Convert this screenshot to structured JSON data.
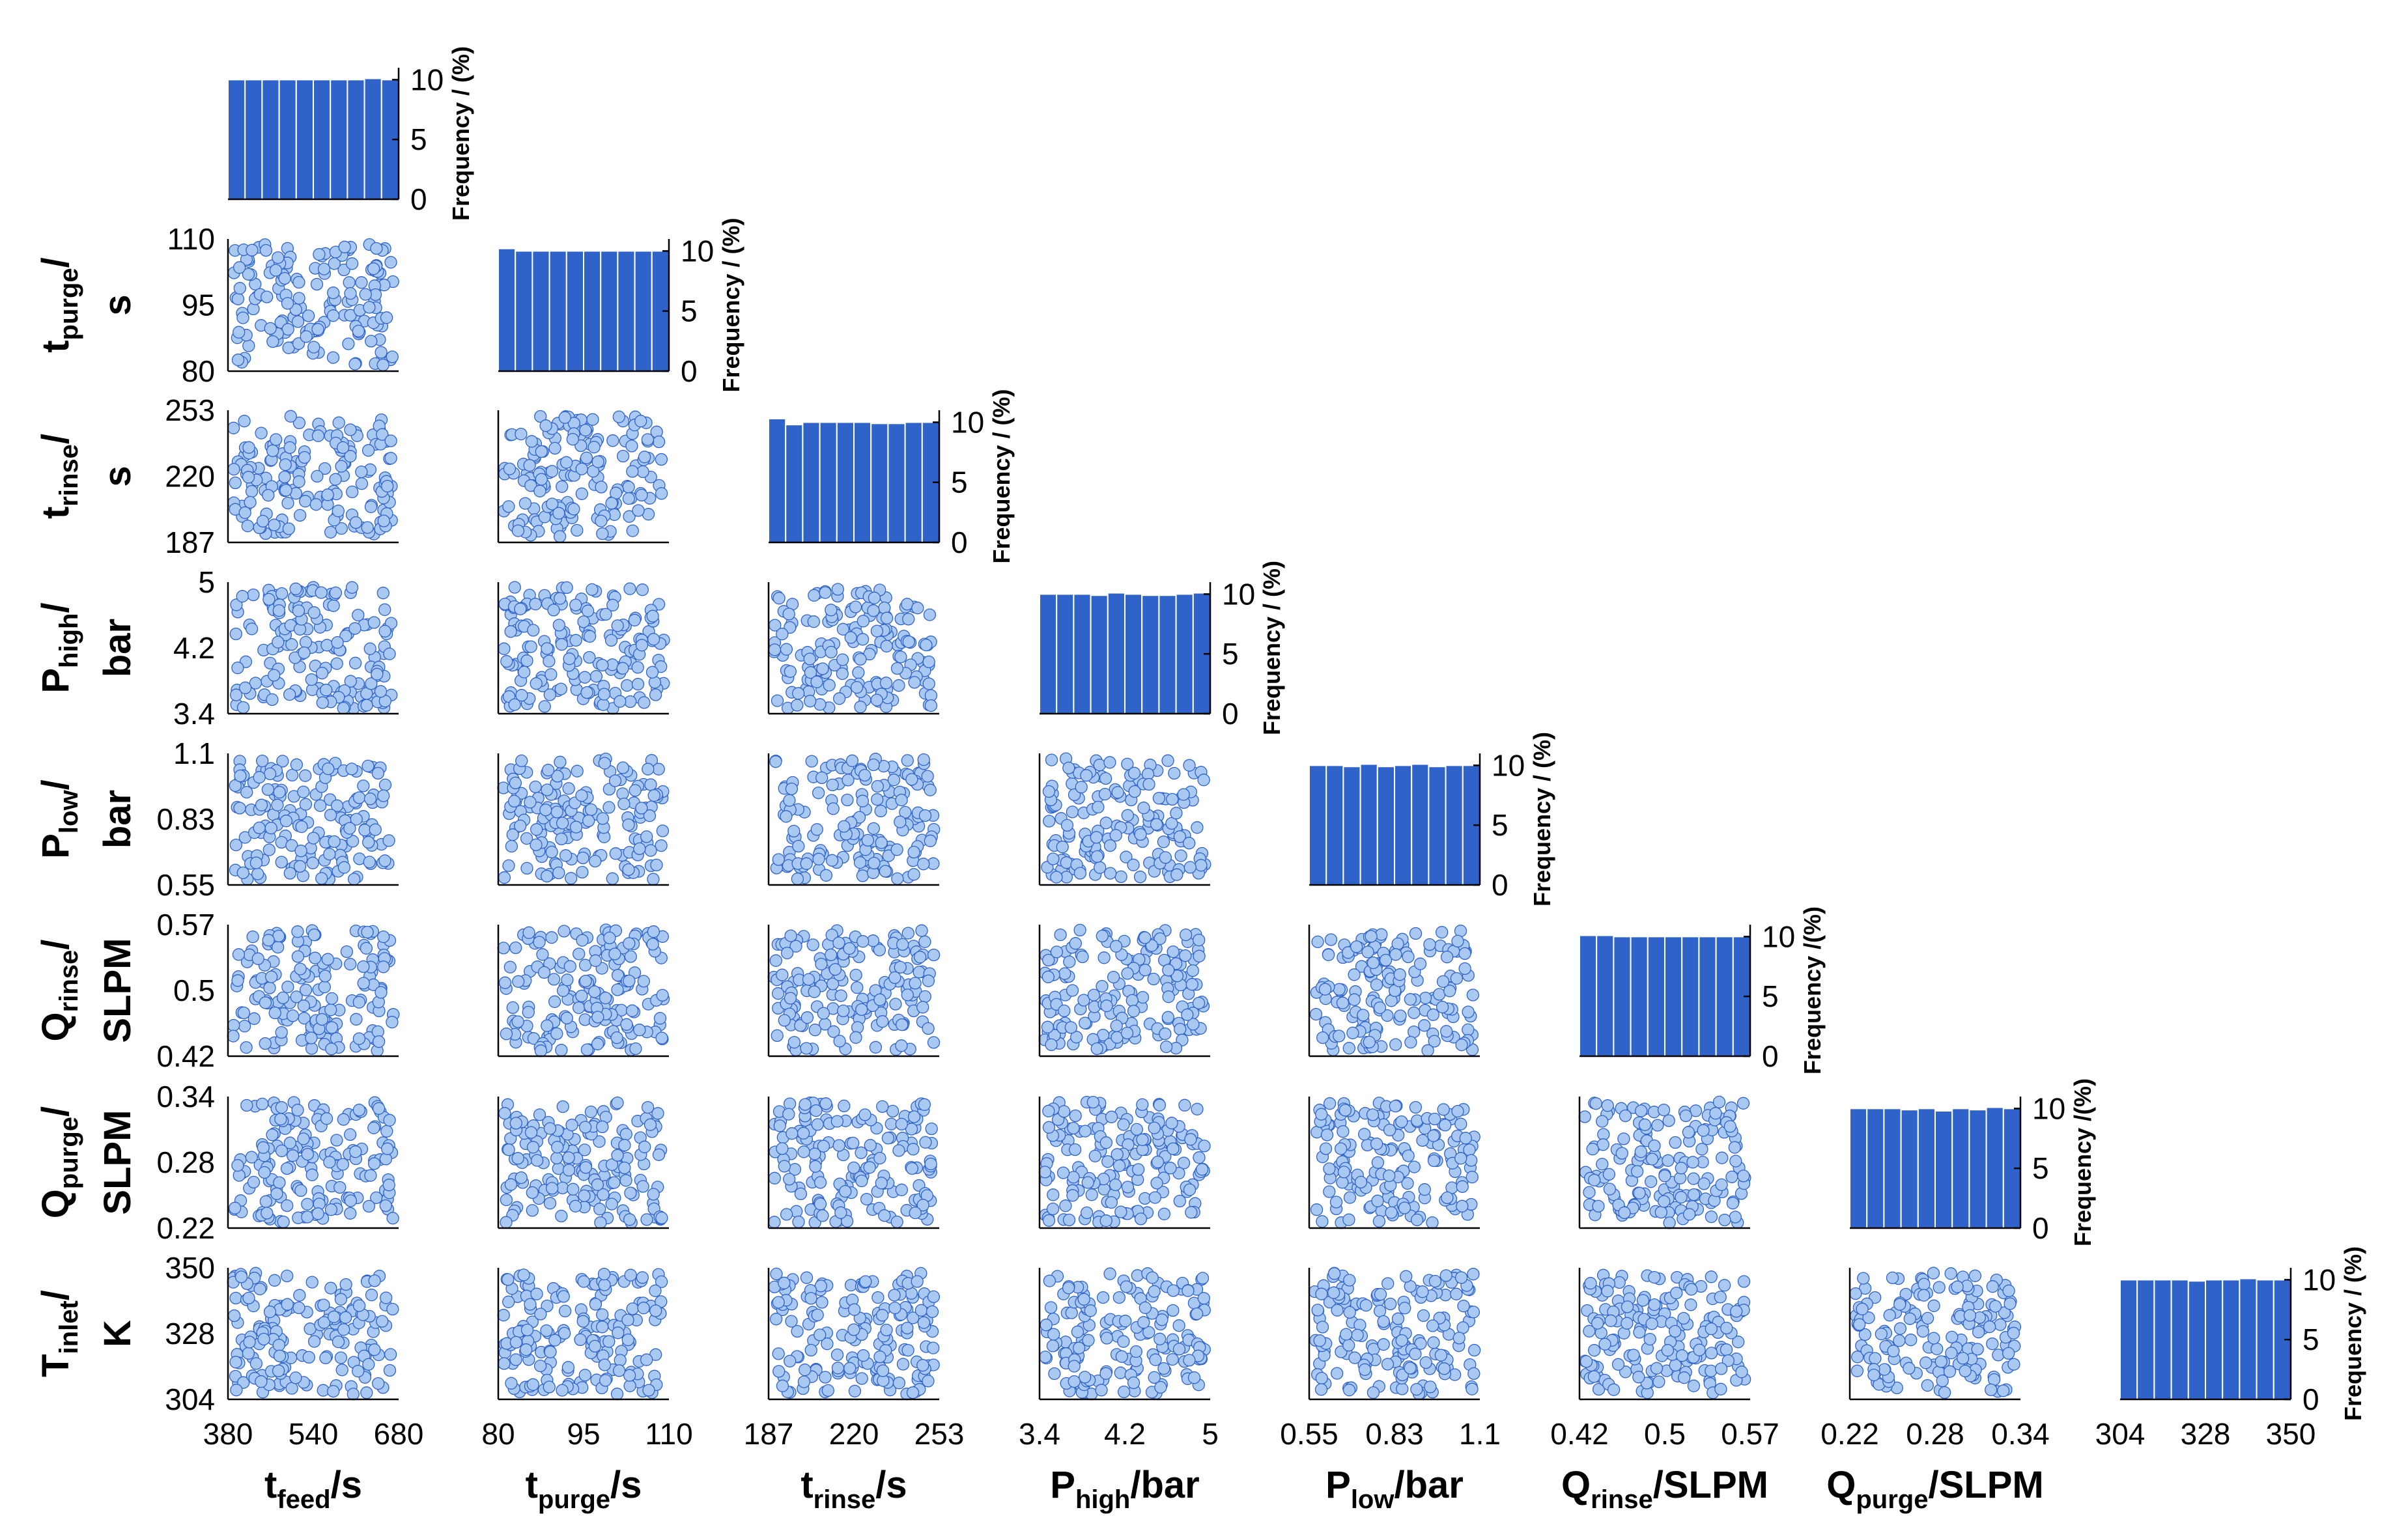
{
  "chart_data": {
    "type": "scatter-matrix",
    "title": "",
    "diagonal_type": "histogram",
    "off_diagonal_type": "scatter",
    "marker_color": "#2f63c9",
    "marker_fill": "#a9c8f2",
    "bar_color": "#2f63c9",
    "frequency_label": "Frequency / (%)",
    "frequency_label_alt": "Frequency /(%)",
    "frequency_ticks": [
      "0",
      "5",
      "10"
    ],
    "frequency_ylim": [
      0,
      11
    ],
    "variables": [
      {
        "name": "t_feed",
        "base": "t",
        "sub": "feed",
        "unit": "s",
        "range": [
          380,
          680
        ],
        "ticks": [
          "380",
          "540",
          "680"
        ],
        "hist": [
          10,
          10,
          10,
          10,
          10,
          10,
          10,
          10,
          10.1,
          10
        ]
      },
      {
        "name": "t_purge",
        "base": "t",
        "sub": "purge",
        "unit": "s",
        "range": [
          80,
          110
        ],
        "ticks": [
          "80",
          "95",
          "110"
        ],
        "hist": [
          10.2,
          10,
          10,
          10,
          10,
          10,
          10,
          10,
          10,
          10
        ]
      },
      {
        "name": "t_rinse",
        "base": "t",
        "sub": "rinse",
        "unit": "s",
        "range": [
          187,
          253
        ],
        "ticks": [
          "187",
          "220",
          "253"
        ],
        "hist": [
          10.3,
          9.8,
          10,
          10,
          10,
          10,
          9.9,
          9.9,
          10,
          10
        ]
      },
      {
        "name": "P_high",
        "base": "P",
        "sub": "high",
        "unit": "bar",
        "range": [
          3.4,
          5
        ],
        "ticks": [
          "3.4",
          "4.2",
          "5"
        ],
        "hist": [
          10,
          10,
          10,
          9.9,
          10.1,
          10,
          9.9,
          9.9,
          10,
          10.1
        ]
      },
      {
        "name": "P_low",
        "base": "P",
        "sub": "low",
        "unit": "bar",
        "range": [
          0.55,
          1.1
        ],
        "ticks": [
          "0.55",
          "0.83",
          "1.1"
        ],
        "hist": [
          10,
          10,
          9.9,
          10.1,
          9.9,
          10,
          10.1,
          9.9,
          10,
          10
        ]
      },
      {
        "name": "Q_rinse",
        "base": "Q",
        "sub": "rinse",
        "unit": "SLPM",
        "range": [
          0.42,
          0.57
        ],
        "ticks": [
          "0.42",
          "0.5",
          "0.57"
        ],
        "hist": [
          10.1,
          10.1,
          10,
          10,
          10,
          10,
          10,
          10,
          10,
          10
        ]
      },
      {
        "name": "Q_purge",
        "base": "Q",
        "sub": "purge",
        "unit": "SLPM",
        "range": [
          0.22,
          0.34
        ],
        "ticks": [
          "0.22",
          "0.28",
          "0.34"
        ],
        "hist": [
          10,
          10,
          10,
          9.9,
          10,
          9.8,
          10,
          9.9,
          10.1,
          10
        ]
      },
      {
        "name": "T_inlet",
        "base": "T",
        "sub": "inlet",
        "unit": "K",
        "range": [
          304,
          350
        ],
        "ticks": [
          "304",
          "328",
          "350"
        ],
        "hist": [
          10,
          10,
          10,
          10,
          9.9,
          10,
          10,
          10.1,
          10,
          10
        ]
      }
    ],
    "scatter_points_per_panel": 160
  }
}
